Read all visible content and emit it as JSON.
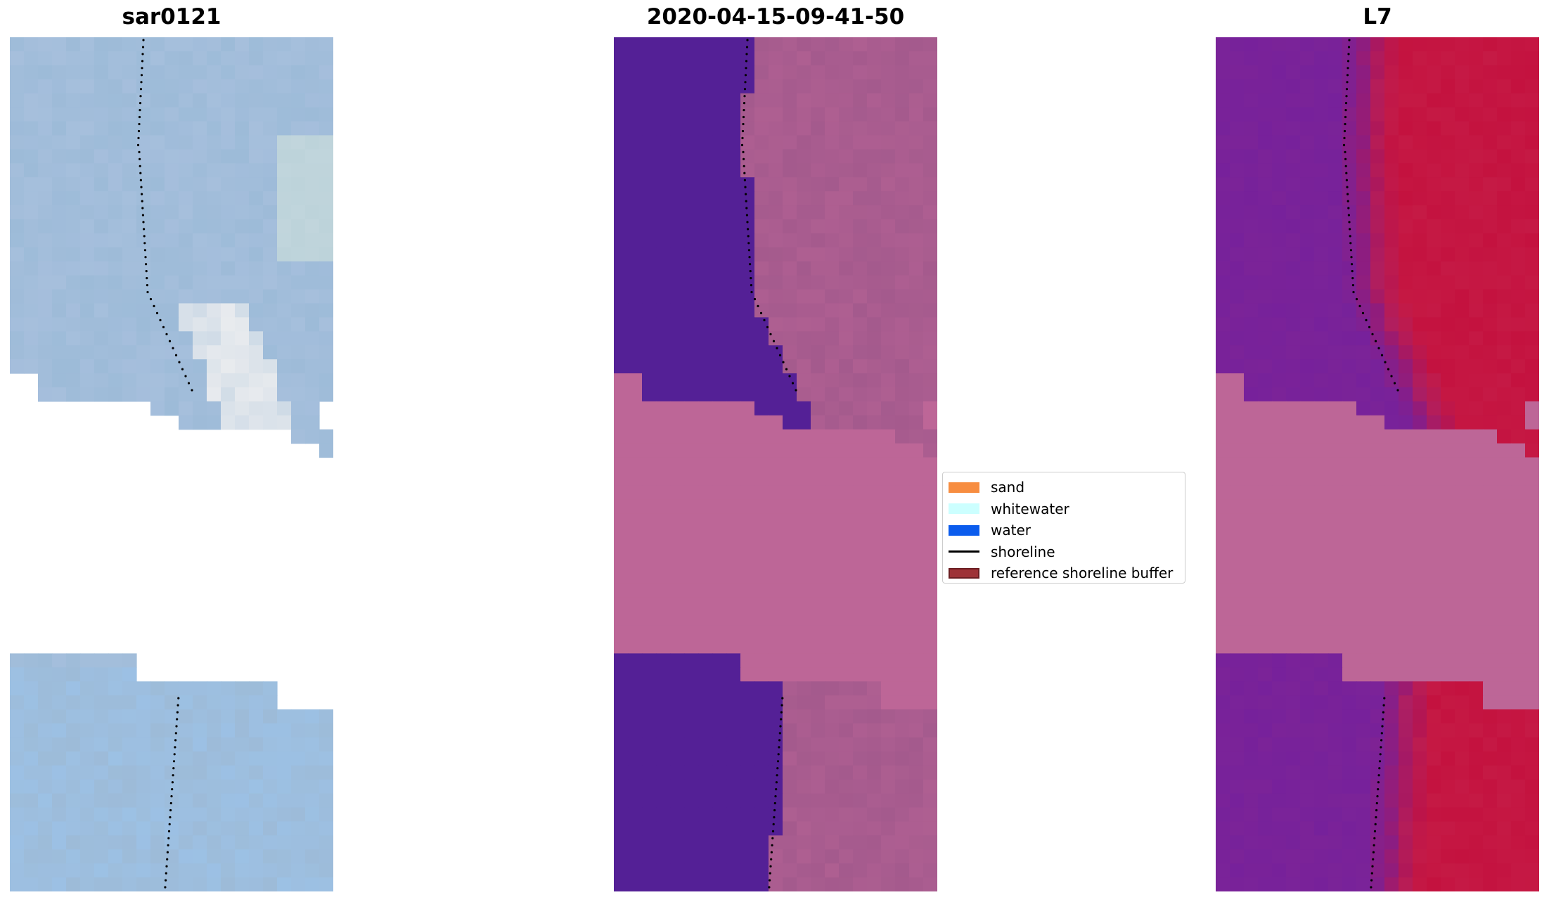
{
  "panels": [
    {
      "id": "rgb",
      "title": "sar0121"
    },
    {
      "id": "classified",
      "title": "2020-04-15-09-41-50"
    },
    {
      "id": "mndwi",
      "title": "L7"
    }
  ],
  "legend": {
    "items": [
      {
        "label": "sand",
        "color": "#f78d40",
        "type": "patch"
      },
      {
        "label": "whitewater",
        "color": "#ccffff",
        "type": "patch"
      },
      {
        "label": "water",
        "color": "#0b5ced",
        "type": "patch"
      },
      {
        "label": "shoreline",
        "color": "#000000",
        "type": "line"
      },
      {
        "label": "reference shoreline buffer",
        "color": "#9e3237",
        "type": "patch",
        "edge": "#6b1e22"
      }
    ]
  },
  "colors": {
    "masked": "#bd6697",
    "water_class": "#542096",
    "land_class": "#a45a8d",
    "rgb_base": "#9dbbd8",
    "mndwi_low": "#7b2398",
    "mndwi_high": "#c4123f"
  }
}
